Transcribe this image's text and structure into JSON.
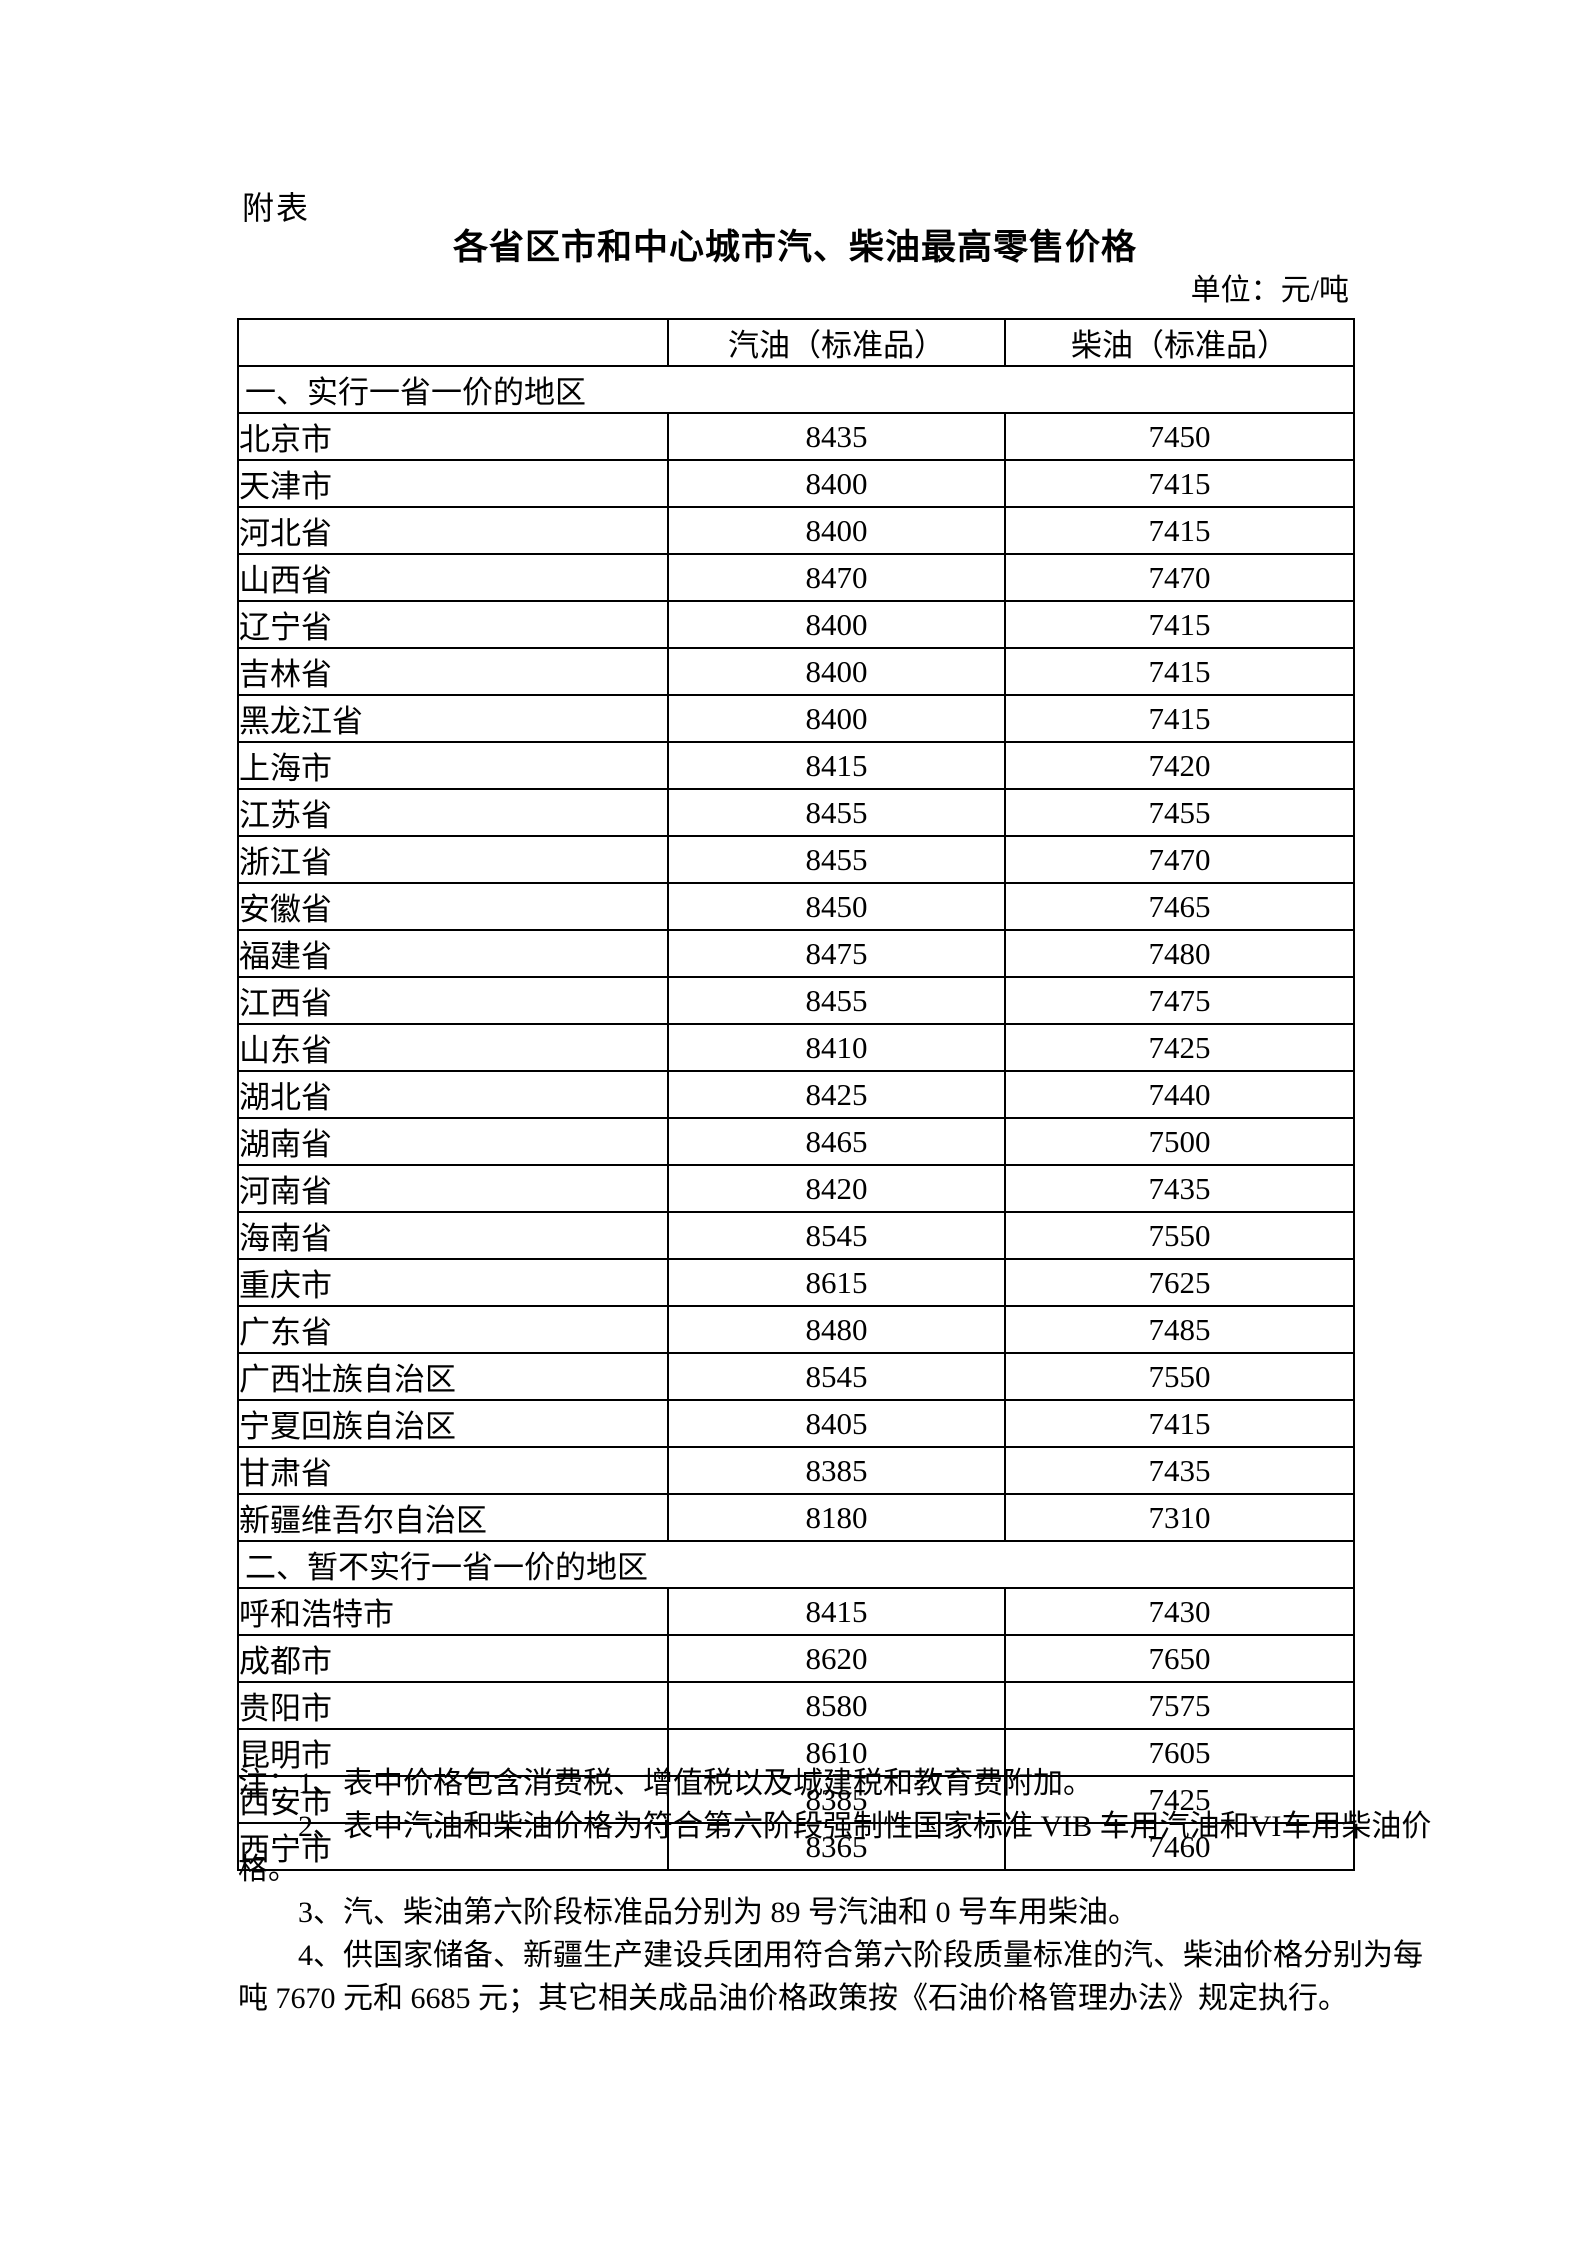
{
  "header": {
    "attachment_label": "附表",
    "title": "各省区市和中心城市汽、柴油最高零售价格",
    "unit_label": "单位：元/吨"
  },
  "table": {
    "columns": [
      "汽油（标准品）",
      "柴油（标准品）"
    ],
    "sections": [
      {
        "header": "一、实行一省一价的地区",
        "rows": [
          {
            "region": "北京市",
            "gasoline": "8435",
            "diesel": "7450"
          },
          {
            "region": "天津市",
            "gasoline": "8400",
            "diesel": "7415"
          },
          {
            "region": "河北省",
            "gasoline": "8400",
            "diesel": "7415"
          },
          {
            "region": "山西省",
            "gasoline": "8470",
            "diesel": "7470"
          },
          {
            "region": "辽宁省",
            "gasoline": "8400",
            "diesel": "7415"
          },
          {
            "region": "吉林省",
            "gasoline": "8400",
            "diesel": "7415"
          },
          {
            "region": "黑龙江省",
            "gasoline": "8400",
            "diesel": "7415"
          },
          {
            "region": "上海市",
            "gasoline": "8415",
            "diesel": "7420"
          },
          {
            "region": "江苏省",
            "gasoline": "8455",
            "diesel": "7455"
          },
          {
            "region": "浙江省",
            "gasoline": "8455",
            "diesel": "7470"
          },
          {
            "region": "安徽省",
            "gasoline": "8450",
            "diesel": "7465"
          },
          {
            "region": "福建省",
            "gasoline": "8475",
            "diesel": "7480"
          },
          {
            "region": "江西省",
            "gasoline": "8455",
            "diesel": "7475"
          },
          {
            "region": "山东省",
            "gasoline": "8410",
            "diesel": "7425"
          },
          {
            "region": "湖北省",
            "gasoline": "8425",
            "diesel": "7440"
          },
          {
            "region": "湖南省",
            "gasoline": "8465",
            "diesel": "7500"
          },
          {
            "region": "河南省",
            "gasoline": "8420",
            "diesel": "7435"
          },
          {
            "region": "海南省",
            "gasoline": "8545",
            "diesel": "7550"
          },
          {
            "region": "重庆市",
            "gasoline": "8615",
            "diesel": "7625"
          },
          {
            "region": "广东省",
            "gasoline": "8480",
            "diesel": "7485"
          },
          {
            "region": "广西壮族自治区",
            "gasoline": "8545",
            "diesel": "7550"
          },
          {
            "region": "宁夏回族自治区",
            "gasoline": "8405",
            "diesel": "7415"
          },
          {
            "region": "甘肃省",
            "gasoline": "8385",
            "diesel": "7435"
          },
          {
            "region": "新疆维吾尔自治区",
            "gasoline": "8180",
            "diesel": "7310"
          }
        ]
      },
      {
        "header": "二、暂不实行一省一价的地区",
        "rows": [
          {
            "region": "呼和浩特市",
            "gasoline": "8415",
            "diesel": "7430"
          },
          {
            "region": "成都市",
            "gasoline": "8620",
            "diesel": "7650"
          },
          {
            "region": "贵阳市",
            "gasoline": "8580",
            "diesel": "7575"
          },
          {
            "region": "昆明市",
            "gasoline": "8610",
            "diesel": "7605"
          },
          {
            "region": "西安市",
            "gasoline": "8385",
            "diesel": "7425"
          },
          {
            "region": "西宁市",
            "gasoline": "8365",
            "diesel": "7460"
          }
        ]
      }
    ]
  },
  "notes": [
    {
      "indent": false,
      "text": "注：1、表中价格包含消费税、增值税以及城建税和教育费附加。"
    },
    {
      "indent": true,
      "text": "2、表中汽油和柴油价格为符合第六阶段强制性国家标准 VIB 车用汽油和VI车用柴油价"
    },
    {
      "indent": false,
      "text": "格。"
    },
    {
      "indent": true,
      "text": "3、汽、柴油第六阶段标准品分别为 89 号汽油和 0 号车用柴油。"
    },
    {
      "indent": true,
      "text": "4、供国家储备、新疆生产建设兵团用符合第六阶段质量标准的汽、柴油价格分别为每"
    },
    {
      "indent": false,
      "text": "吨 7670 元和 6685 元；其它相关成品油价格政策按《石油价格管理办法》规定执行。"
    }
  ]
}
